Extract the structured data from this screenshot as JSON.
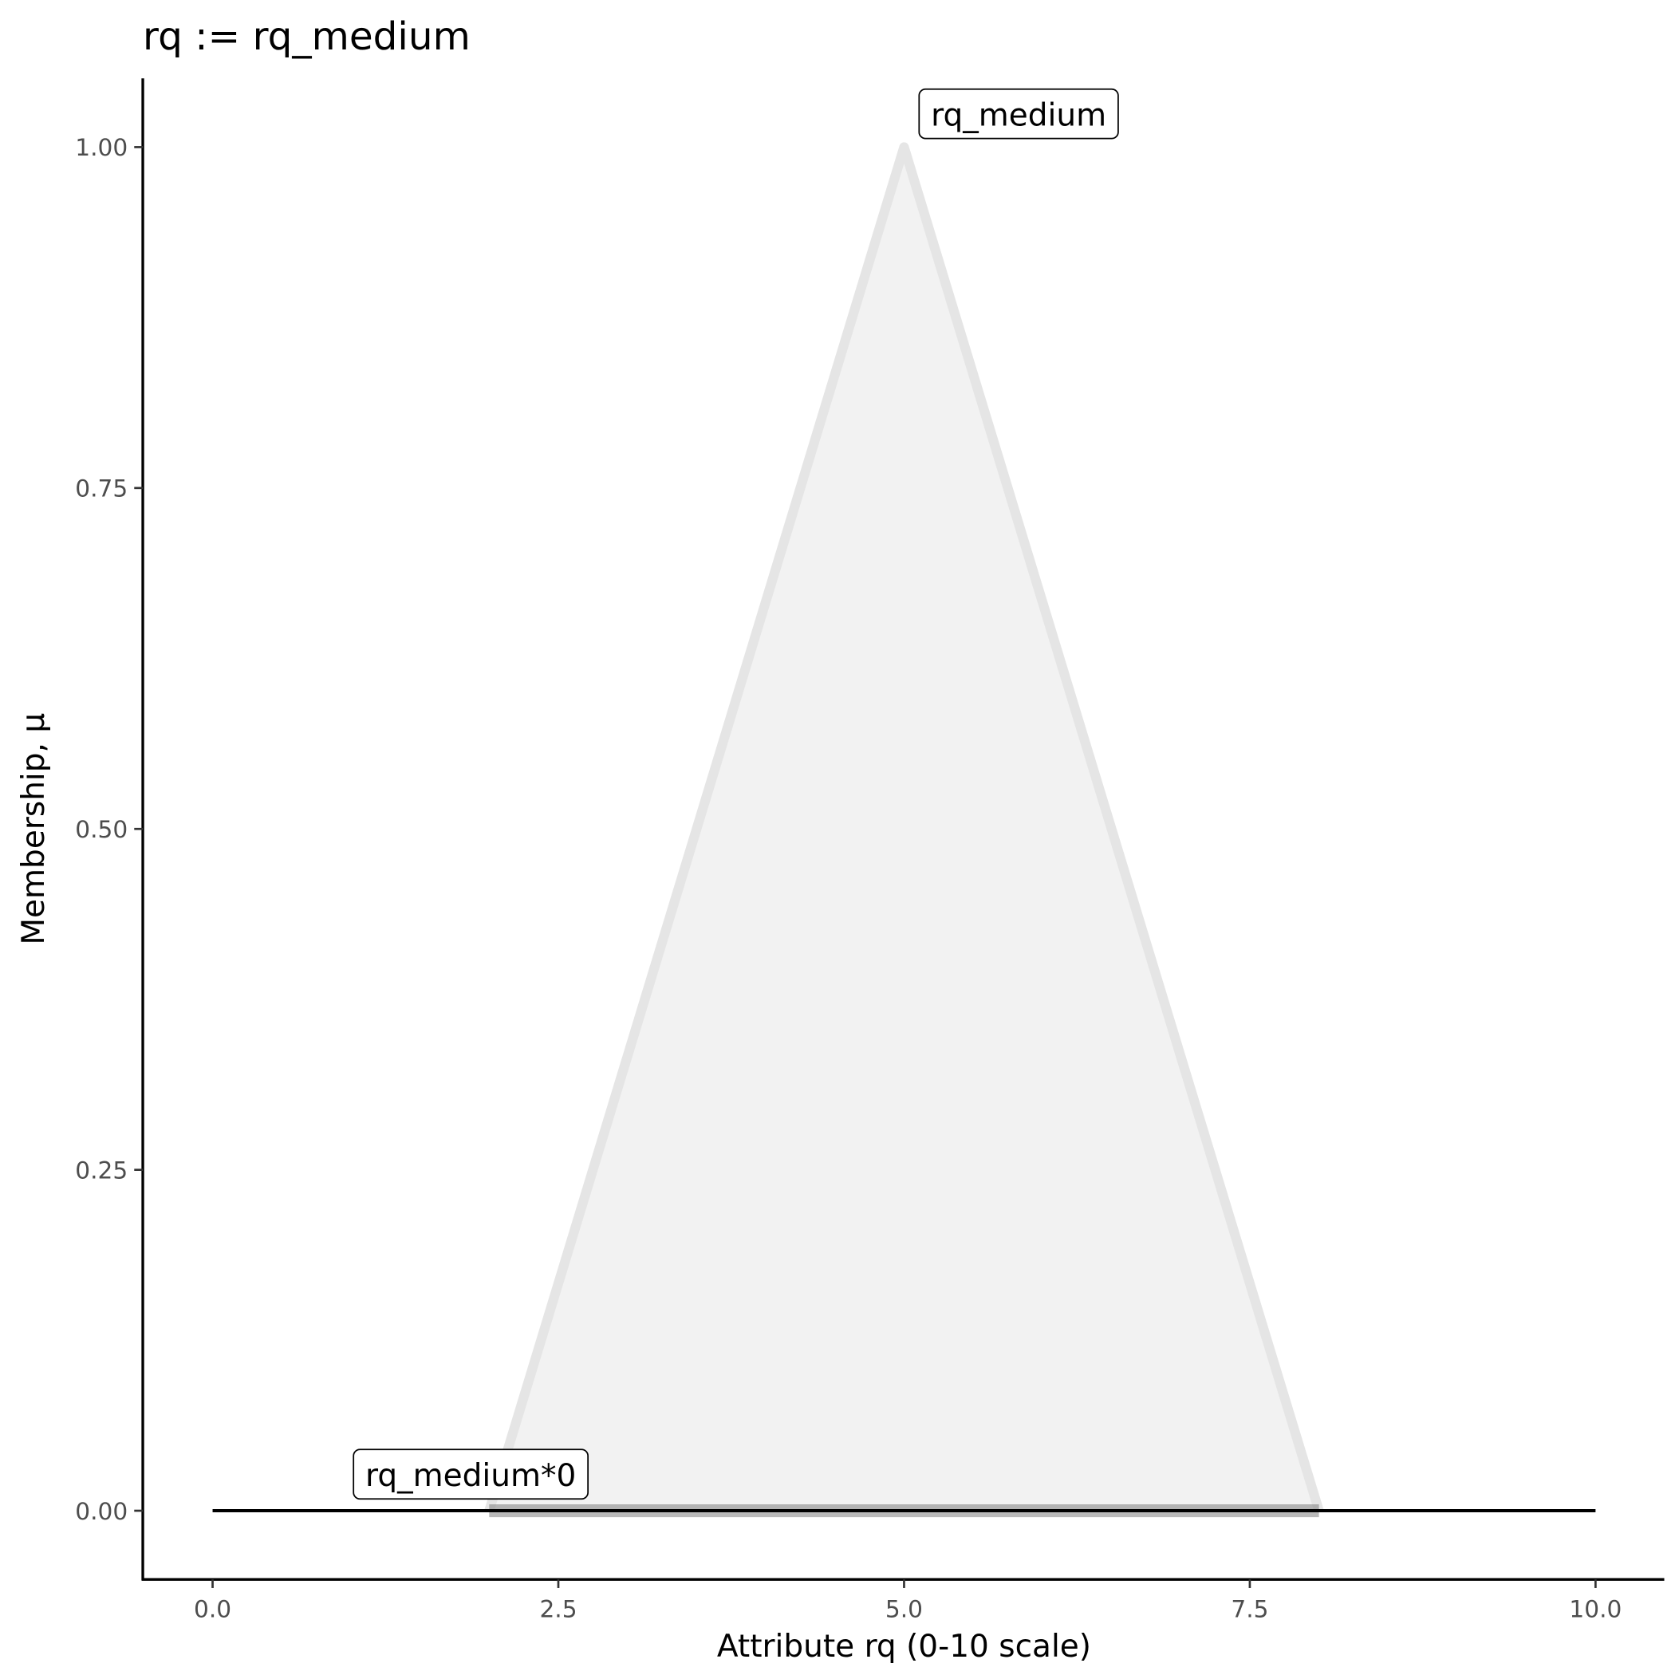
{
  "chart_data": {
    "type": "line",
    "title": "rq := rq_medium",
    "xlabel": "Attribute rq (0-10 scale)",
    "ylabel": "Membership, μ",
    "xlim": [
      -0.5,
      10.5
    ],
    "ylim": [
      -0.05,
      1.05
    ],
    "x_ticks": [
      "0.0",
      "2.5",
      "5.0",
      "7.5",
      "10.0"
    ],
    "x_tick_values": [
      0,
      2.5,
      5,
      7.5,
      10
    ],
    "y_ticks": [
      "0.00",
      "0.25",
      "0.50",
      "0.75",
      "1.00"
    ],
    "y_tick_values": [
      0,
      0.25,
      0.5,
      0.75,
      1
    ],
    "grid": false,
    "series": [
      {
        "name": "rq_medium",
        "x": [
          2,
          5,
          8
        ],
        "y": [
          0,
          1,
          0
        ],
        "color": "#e5e5e5",
        "fill": "#f2f2f2",
        "label_at": [
          5,
          1
        ]
      },
      {
        "name": "rq_medium*0",
        "x": [
          0,
          2,
          5,
          8,
          10
        ],
        "y": [
          0,
          0,
          0,
          0,
          0
        ],
        "color": "#000000",
        "label_at": [
          2.3,
          0
        ]
      }
    ],
    "highlight_band": {
      "x": [
        2,
        8
      ],
      "y": 0,
      "color": "#808080"
    }
  }
}
